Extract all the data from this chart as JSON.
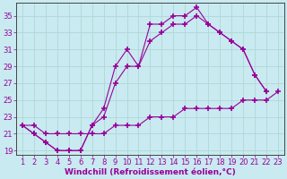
{
  "background_color": "#c8eaf0",
  "grid_color": "#b0d8d8",
  "line_color": "#990099",
  "marker": "+",
  "marker_size": 4,
  "marker_linewidth": 1.2,
  "linewidth": 0.8,
  "xlabel": "Windchill (Refroidissement éolien,°C)",
  "xlabel_fontsize": 6.5,
  "tick_fontsize": 6,
  "xlim": [
    0.5,
    23.5
  ],
  "ylim": [
    18.5,
    36.5
  ],
  "yticks": [
    19,
    21,
    23,
    25,
    27,
    29,
    31,
    33,
    35
  ],
  "xticks": [
    1,
    2,
    3,
    4,
    5,
    6,
    7,
    8,
    9,
    10,
    11,
    12,
    13,
    14,
    15,
    16,
    17,
    18,
    19,
    20,
    21,
    22,
    23
  ],
  "curve1_x": [
    1,
    2,
    3,
    4,
    5,
    6,
    7,
    8,
    9,
    10,
    11,
    12,
    13,
    14,
    15,
    16,
    17,
    18,
    19,
    20,
    21,
    22
  ],
  "curve1_y": [
    22,
    21,
    20,
    19,
    19,
    19,
    22,
    24,
    29,
    31,
    29,
    34,
    34,
    35,
    35,
    36,
    34,
    33,
    32,
    31,
    28,
    26
  ],
  "curve2_x": [
    1,
    2,
    3,
    4,
    5,
    6,
    7,
    8,
    9,
    10,
    11,
    12,
    13,
    14,
    15,
    16,
    17,
    18,
    19,
    20,
    21,
    22
  ],
  "curve2_y": [
    22,
    21,
    20,
    19,
    19,
    19,
    22,
    23,
    27,
    29,
    29,
    32,
    33,
    34,
    34,
    35,
    34,
    33,
    32,
    31,
    28,
    26
  ],
  "curve3_x": [
    1,
    2,
    3,
    4,
    5,
    6,
    7,
    8,
    9,
    10,
    11,
    12,
    13,
    14,
    15,
    16,
    17,
    18,
    19,
    20,
    21,
    22,
    23
  ],
  "curve3_y": [
    22,
    22,
    21,
    21,
    21,
    21,
    21,
    21,
    22,
    22,
    22,
    23,
    23,
    23,
    24,
    24,
    24,
    24,
    24,
    25,
    25,
    25,
    26
  ]
}
